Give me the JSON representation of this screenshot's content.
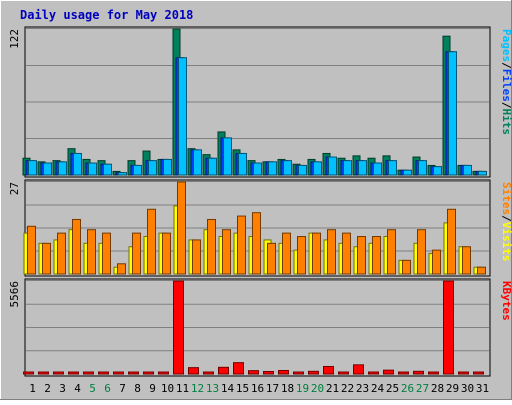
{
  "title": "Daily usage for May 2018",
  "colors": {
    "hits": "#00805c",
    "files": "#0040ff",
    "pages": "#00c0ff",
    "visits": "#ffff00",
    "sites": "#ff8000",
    "kbytes": "#ff0000",
    "title": "#0000c0",
    "weekend_label": "#008040",
    "weekday_label": "#000000",
    "panel_bg": "#c0c0c0",
    "grid": "#808080"
  },
  "chart_data": [
    {
      "type": "bar",
      "panel": "hits-files-pages",
      "ymax_label": "122",
      "ymax": 122,
      "right_label": [
        "Pages",
        "/",
        "Files",
        "/",
        "Hits"
      ],
      "categories": [
        "1",
        "2",
        "3",
        "4",
        "5",
        "6",
        "7",
        "8",
        "9",
        "10",
        "11",
        "12",
        "13",
        "14",
        "15",
        "16",
        "17",
        "18",
        "19",
        "20",
        "21",
        "22",
        "23",
        "24",
        "25",
        "26",
        "27",
        "28",
        "29",
        "30",
        "31"
      ],
      "series": [
        {
          "key": "hits",
          "values": [
            14,
            11,
            12,
            22,
            13,
            12,
            3,
            12,
            20,
            13,
            122,
            22,
            17,
            36,
            21,
            12,
            11,
            13,
            9,
            13,
            18,
            14,
            16,
            14,
            16,
            4,
            15,
            8,
            116,
            8,
            3
          ]
        },
        {
          "key": "files",
          "values": [
            12,
            10,
            11,
            18,
            10,
            9,
            2,
            8,
            12,
            13,
            98,
            21,
            14,
            31,
            18,
            10,
            11,
            12,
            8,
            11,
            15,
            12,
            12,
            10,
            12,
            4,
            12,
            7,
            103,
            8,
            3
          ]
        },
        {
          "key": "pages",
          "values": [
            12,
            10,
            11,
            18,
            10,
            9,
            2,
            8,
            12,
            13,
            98,
            21,
            14,
            31,
            18,
            10,
            11,
            12,
            8,
            11,
            15,
            12,
            12,
            10,
            12,
            4,
            12,
            7,
            103,
            8,
            3
          ]
        }
      ]
    },
    {
      "type": "bar",
      "panel": "visits-sites",
      "ymax_label": "27",
      "ymax": 27,
      "right_label": [
        "Sites",
        "/",
        "Visits"
      ],
      "categories": [
        "1",
        "2",
        "3",
        "4",
        "5",
        "6",
        "7",
        "8",
        "9",
        "10",
        "11",
        "12",
        "13",
        "14",
        "15",
        "16",
        "17",
        "18",
        "19",
        "20",
        "21",
        "22",
        "23",
        "24",
        "25",
        "26",
        "27",
        "28",
        "29",
        "30",
        "31"
      ],
      "series": [
        {
          "key": "visits",
          "values": [
            12,
            9,
            10,
            13,
            9,
            9,
            2,
            8,
            11,
            12,
            20,
            10,
            13,
            11,
            12,
            11,
            10,
            9,
            7,
            12,
            10,
            9,
            8,
            9,
            11,
            4,
            9,
            6,
            15,
            8,
            2
          ]
        },
        {
          "key": "sites",
          "values": [
            14,
            9,
            12,
            16,
            13,
            12,
            3,
            12,
            19,
            12,
            27,
            10,
            16,
            13,
            17,
            18,
            9,
            12,
            11,
            12,
            13,
            12,
            11,
            11,
            13,
            4,
            13,
            7,
            19,
            8,
            2
          ]
        }
      ]
    },
    {
      "type": "bar",
      "panel": "kbytes",
      "ymax_label": "5566",
      "ymax": 5566,
      "right_label": [
        "KBytes"
      ],
      "categories": [
        "1",
        "2",
        "3",
        "4",
        "5",
        "6",
        "7",
        "8",
        "9",
        "10",
        "11",
        "12",
        "13",
        "14",
        "15",
        "16",
        "17",
        "18",
        "19",
        "20",
        "21",
        "22",
        "23",
        "24",
        "25",
        "26",
        "27",
        "28",
        "29",
        "30",
        "31"
      ],
      "series": [
        {
          "key": "kbytes",
          "values": [
            80,
            60,
            70,
            90,
            70,
            70,
            20,
            60,
            80,
            90,
            5566,
            380,
            110,
            400,
            680,
            200,
            150,
            210,
            110,
            160,
            450,
            90,
            550,
            120,
            230,
            60,
            160,
            90,
            5566,
            100,
            90
          ]
        }
      ]
    }
  ],
  "x_axis": {
    "labels": [
      "1",
      "2",
      "3",
      "4",
      "5",
      "6",
      "7",
      "8",
      "9",
      "10",
      "11",
      "12",
      "13",
      "14",
      "15",
      "16",
      "17",
      "18",
      "19",
      "20",
      "21",
      "22",
      "23",
      "24",
      "25",
      "26",
      "27",
      "28",
      "29",
      "30",
      "31"
    ],
    "weekend": [
      5,
      6,
      12,
      13,
      19,
      20,
      26,
      27
    ]
  }
}
